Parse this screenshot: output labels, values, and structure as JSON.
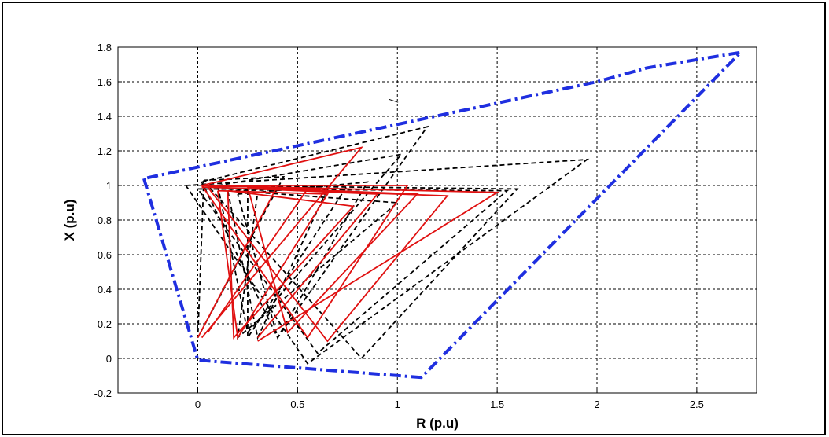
{
  "chart_data": {
    "type": "line",
    "title": "",
    "xlabel": "R (p.u)",
    "ylabel": "X (p.u)",
    "xlim": [
      -0.4,
      2.8
    ],
    "ylim": [
      -0.2,
      1.8
    ],
    "xticks": [
      0,
      0.5,
      1,
      1.5,
      2,
      2.5
    ],
    "yticks": [
      -0.2,
      0,
      0.2,
      0.4,
      0.6,
      0.8,
      1,
      1.2,
      1.4,
      1.6,
      1.8
    ],
    "grid": true,
    "legend": "none",
    "colors": {
      "boundary": "#1f2fe0",
      "dashed": "#000000",
      "solid": "#e01010"
    },
    "series": [
      {
        "style": "dash-dot",
        "color": "#1f2fe0",
        "x": [
          -0.27,
          0.0,
          1.12,
          2.72,
          2.25,
          2.0,
          -0.27
        ],
        "y": [
          1.04,
          -0.01,
          -0.11,
          1.77,
          1.68,
          1.6,
          1.04
        ]
      },
      {
        "style": "dashed",
        "color": "#000000",
        "polylines": [
          {
            "x": [
              -0.06,
              1.95,
              0.55,
              -0.06
            ],
            "y": [
              1.0,
              1.15,
              -0.03,
              1.0
            ]
          },
          {
            "x": [
              0.02,
              1.15,
              0.4,
              0.02
            ],
            "y": [
              1.02,
              1.34,
              0.12,
              1.02
            ]
          },
          {
            "x": [
              0.05,
              1.6,
              0.82,
              0.05
            ],
            "y": [
              1.0,
              0.98,
              0.0,
              1.0
            ]
          },
          {
            "x": [
              0.1,
              1.02,
              0.25,
              0.1
            ],
            "y": [
              1.0,
              1.18,
              0.15,
              1.0
            ]
          },
          {
            "x": [
              0.0,
              1.55,
              0.6,
              0.0
            ],
            "y": [
              0.98,
              0.97,
              0.03,
              0.98
            ]
          },
          {
            "x": [
              0.03,
              0.43,
              0.0,
              0.03
            ],
            "y": [
              1.03,
              1.05,
              0.12,
              1.03
            ]
          },
          {
            "x": [
              0.2,
              0.85,
              0.4,
              0.2
            ],
            "y": [
              0.95,
              1.02,
              0.12,
              0.95
            ]
          },
          {
            "x": [
              0.15,
              0.65,
              0.3,
              0.15
            ],
            "y": [
              0.97,
              0.98,
              0.12,
              0.97
            ]
          },
          {
            "x": [
              0.3,
              1.0,
              0.2,
              0.3
            ],
            "y": [
              0.96,
              0.9,
              0.12,
              0.96
            ]
          },
          {
            "x": [
              0.25,
              0.75,
              0.25,
              0.25
            ],
            "y": [
              0.98,
              1.0,
              0.12,
              0.98
            ]
          }
        ]
      },
      {
        "style": "solid",
        "color": "#e01010",
        "polylines": [
          {
            "x": [
              0.02,
              0.82,
              0.02
            ],
            "y": [
              1.0,
              1.22,
              0.12
            ]
          },
          {
            "x": [
              0.02,
              1.5,
              0.3,
              1.5
            ],
            "y": [
              1.0,
              0.96,
              0.1,
              0.96
            ]
          },
          {
            "x": [
              0.05,
              1.25,
              0.65,
              0.05
            ],
            "y": [
              0.99,
              0.94,
              0.1,
              0.99
            ]
          },
          {
            "x": [
              0.02,
              1.05,
              0.55,
              0.02
            ],
            "y": [
              1.0,
              1.0,
              0.12,
              1.0
            ]
          },
          {
            "x": [
              0.15,
              0.78,
              0.18,
              0.15
            ],
            "y": [
              0.97,
              0.88,
              0.12,
              0.97
            ]
          },
          {
            "x": [
              0.25,
              1.1,
              0.45,
              0.25
            ],
            "y": [
              0.99,
              0.95,
              0.15,
              0.99
            ]
          },
          {
            "x": [
              0.1,
              0.65,
              0.2,
              0.1
            ],
            "y": [
              0.97,
              0.95,
              0.12,
              0.97
            ]
          },
          {
            "x": [
              0.05,
              0.55,
              0.05
            ],
            "y": [
              1.0,
              0.98,
              0.15
            ]
          },
          {
            "x": [
              0.02,
              0.4,
              0.0
            ],
            "y": [
              0.99,
              1.0,
              0.12
            ]
          },
          {
            "x": [
              0.3,
              0.9,
              0.3
            ],
            "y": [
              0.98,
              0.95,
              0.12
            ]
          }
        ]
      }
    ],
    "annotation_mark": {
      "x": 0.98,
      "y": 1.49
    }
  }
}
